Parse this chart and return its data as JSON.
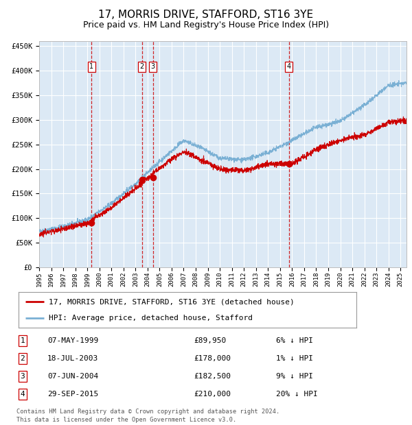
{
  "title": "17, MORRIS DRIVE, STAFFORD, ST16 3YE",
  "subtitle": "Price paid vs. HM Land Registry's House Price Index (HPI)",
  "legend_line1": "17, MORRIS DRIVE, STAFFORD, ST16 3YE (detached house)",
  "legend_line2": "HPI: Average price, detached house, Stafford",
  "footer1": "Contains HM Land Registry data © Crown copyright and database right 2024.",
  "footer2": "This data is licensed under the Open Government Licence v3.0.",
  "table": [
    {
      "num": "1",
      "date": "07-MAY-1999",
      "price": "£89,950",
      "hpi": "6% ↓ HPI"
    },
    {
      "num": "2",
      "date": "18-JUL-2003",
      "price": "£178,000",
      "hpi": "1% ↓ HPI"
    },
    {
      "num": "3",
      "date": "07-JUN-2004",
      "price": "£182,500",
      "hpi": "9% ↓ HPI"
    },
    {
      "num": "4",
      "date": "29-SEP-2015",
      "price": "£210,000",
      "hpi": "20% ↓ HPI"
    }
  ],
  "sale_dates_decimal": [
    1999.354,
    2003.542,
    2004.437,
    2015.747
  ],
  "sale_prices": [
    89950,
    178000,
    182500,
    210000
  ],
  "red_color": "#cc0000",
  "blue_color": "#7ab0d4",
  "dashed_color": "#cc0000",
  "plot_bg_color": "#dce9f5",
  "grid_color": "#ffffff",
  "ylim": [
    0,
    460000
  ],
  "xlim_start": 1995.0,
  "xlim_end": 2025.5,
  "yticks": [
    0,
    50000,
    100000,
    150000,
    200000,
    250000,
    300000,
    350000,
    400000,
    450000
  ],
  "ytick_labels": [
    "£0",
    "£50K",
    "£100K",
    "£150K",
    "£200K",
    "£250K",
    "£300K",
    "£350K",
    "£400K",
    "£450K"
  ],
  "xtick_years": [
    1995,
    1996,
    1997,
    1998,
    1999,
    2000,
    2001,
    2002,
    2003,
    2004,
    2005,
    2006,
    2007,
    2008,
    2009,
    2010,
    2011,
    2012,
    2013,
    2014,
    2015,
    2016,
    2017,
    2018,
    2019,
    2020,
    2021,
    2022,
    2023,
    2024,
    2025
  ],
  "title_fontsize": 11,
  "subtitle_fontsize": 9
}
